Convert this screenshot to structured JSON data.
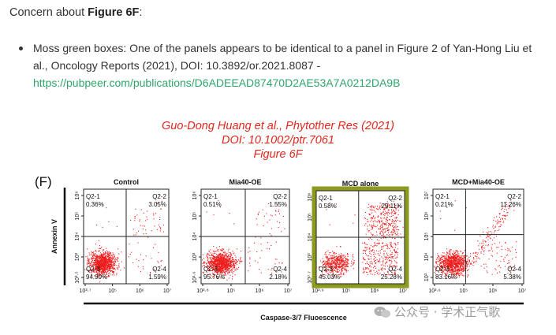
{
  "heading": {
    "prefix": "Concern about ",
    "bold": "Figure 6F",
    "suffix": ":"
  },
  "bullet": {
    "text": "Moss green boxes: One of the panels appears to be identical to a panel in Figure 2 of Yan-Hong Liu et al., Oncology Reports (2021), DOI: 10.3892/or.2021.8087 -",
    "link": "https://pubpeer.com/publications/D6ADEEAD87470D2AE53A7A0212DA9B"
  },
  "citation": {
    "line1": "Guo-Dong Huang et al., Phytother Res (2021)",
    "line2": "DOI: 10.1002/ptr.7061",
    "line3": "Figure 6F"
  },
  "figure": {
    "panel_letter": "(F)",
    "y_axis_label": "Annexin V",
    "x_axis_label": "Caspase-3/7  Fluoescence",
    "highlight_color": "#8c9a1e",
    "point_color": "#ee1c1c",
    "panels": [
      {
        "title": "Control",
        "q1_name": "Q2-1",
        "q1": "0.36%",
        "q2_name": "Q2-2",
        "q2": "3.05%",
        "q3_name": "Q2-3",
        "q3": "94.99%",
        "q4_name": "Q2-4",
        "q4": "1.59%",
        "y_ticks": [
          "10⁶",
          "10⁵",
          "10⁴",
          "10³",
          "10¹·⁵"
        ],
        "x_ticks": [
          "10³·⁷",
          "10⁵",
          "10⁶",
          "10⁷"
        ],
        "highlighted": false
      },
      {
        "title": "Mia40-OE",
        "q1_name": "Q2-1",
        "q1": "0.51%",
        "q2_name": "Q2-2",
        "q2": "1.55%",
        "q3_name": "Q2-3",
        "q3": "95.76%",
        "q4_name": "Q2-4",
        "q4": "2.18%",
        "y_ticks": [
          "10⁶",
          "10⁵",
          "10⁴",
          "10³",
          "10¹·⁶"
        ],
        "x_ticks": [
          "10³·⁸",
          "10⁵",
          "10⁶",
          "10⁷"
        ],
        "highlighted": false
      },
      {
        "title": "MCD alone",
        "q1_name": "Q2-1",
        "q1": "0.58%",
        "q2_name": "Q2-2",
        "q2": "29.11%",
        "q3_name": "Q2-3",
        "q3": "45.03%",
        "q4_name": "Q2-4",
        "q4": "25.28%",
        "y_ticks": [
          "10⁶",
          "10⁵",
          "10⁴",
          "10³",
          "10⁰·⁷"
        ],
        "x_ticks": [
          "10³·⁶",
          "10⁵",
          "10⁶",
          "10⁷"
        ],
        "highlighted": true
      },
      {
        "title": "MCD+Mia40-OE",
        "q1_name": "Q2-1",
        "q1": "0.21%",
        "q2_name": "Q2-2",
        "q2": "11.26%",
        "q3_name": "Q2-3",
        "q3": "83.16%",
        "q4_name": "Q2-4",
        "q4": "5.38%",
        "y_ticks": [
          "10⁷",
          "10⁶",
          "10⁵",
          "10⁴",
          "10³"
        ],
        "x_ticks": [
          "10³·⁶",
          "10⁵",
          "10⁶",
          "10⁷"
        ],
        "highlighted": false
      }
    ]
  },
  "watermark": {
    "text": "公众号 · 学术正气歌"
  }
}
